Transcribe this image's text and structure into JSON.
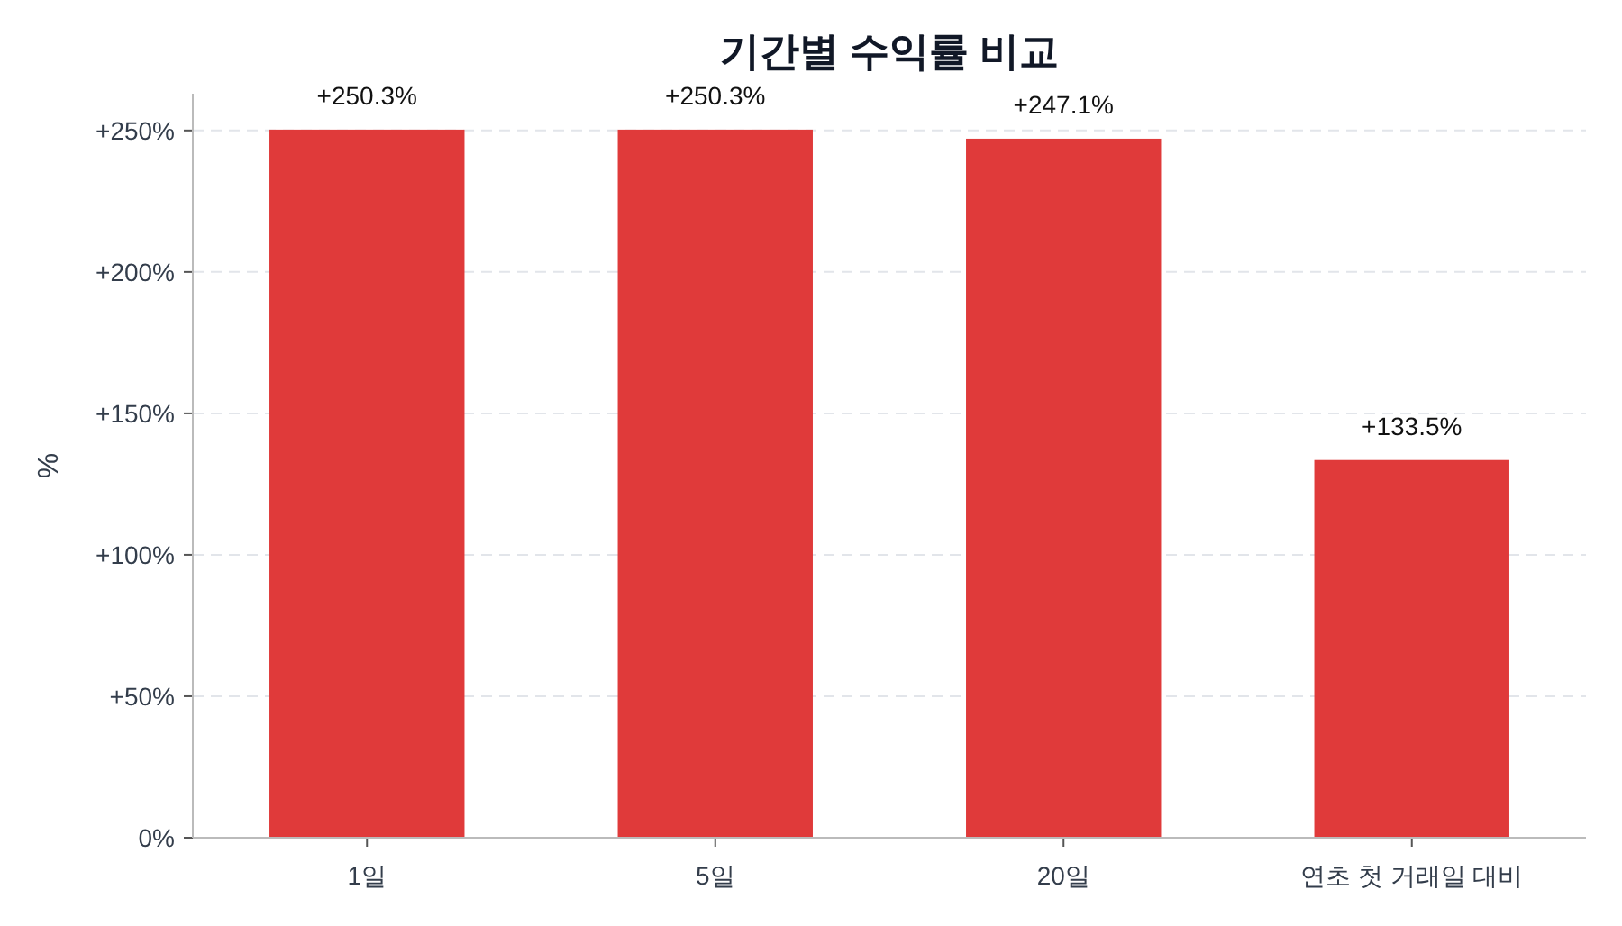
{
  "chart_data": {
    "type": "bar",
    "title": "기간별 수익률 비교",
    "ylabel": "%",
    "categories": [
      "1일",
      "5일",
      "20일",
      "연초 첫 거래일 대비"
    ],
    "values": [
      250.3,
      250.3,
      247.1,
      133.5
    ],
    "value_labels": [
      "+250.3%",
      "+250.3%",
      "+247.1%",
      "+133.5%"
    ],
    "color": "#e03a3a",
    "ylim": [
      0,
      263
    ],
    "yticks": [
      {
        "value": 0,
        "label": "0%"
      },
      {
        "value": 50,
        "label": "+50%"
      },
      {
        "value": 100,
        "label": "+100%"
      },
      {
        "value": 150,
        "label": "+150%"
      },
      {
        "value": 200,
        "label": "+200%"
      },
      {
        "value": 250,
        "label": "+250%"
      }
    ],
    "grid": "y"
  }
}
